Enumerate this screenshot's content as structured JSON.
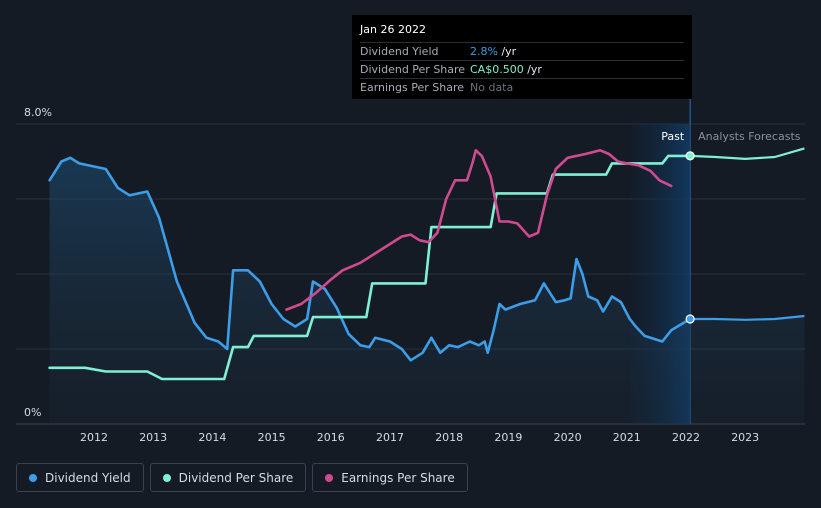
{
  "chart_data": {
    "type": "line",
    "x_axis": {
      "ticks": [
        "2012",
        "2013",
        "2014",
        "2015",
        "2016",
        "2017",
        "2018",
        "2019",
        "2020",
        "2021",
        "2022",
        "2023"
      ]
    },
    "y_axis": {
      "top_label": "8.0%",
      "bottom_label": "0%",
      "ylim": [
        0,
        8.0
      ]
    },
    "sections": {
      "past_label": "Past",
      "forecast_label": "Analysts Forecasts"
    },
    "series": [
      {
        "name": "Dividend Yield",
        "color": "#3c9de8",
        "points": [
          [
            2011.25,
            6.5
          ],
          [
            2011.45,
            7.0
          ],
          [
            2011.6,
            7.1
          ],
          [
            2011.75,
            6.95
          ],
          [
            2012.2,
            6.8
          ],
          [
            2012.4,
            6.3
          ],
          [
            2012.6,
            6.1
          ],
          [
            2012.9,
            6.2
          ],
          [
            2013.1,
            5.5
          ],
          [
            2013.4,
            3.8
          ],
          [
            2013.7,
            2.7
          ],
          [
            2013.9,
            2.3
          ],
          [
            2014.1,
            2.2
          ],
          [
            2014.25,
            2.0
          ],
          [
            2014.35,
            4.1
          ],
          [
            2014.6,
            4.1
          ],
          [
            2014.8,
            3.8
          ],
          [
            2015.0,
            3.2
          ],
          [
            2015.2,
            2.8
          ],
          [
            2015.4,
            2.6
          ],
          [
            2015.6,
            2.8
          ],
          [
            2015.7,
            3.8
          ],
          [
            2015.9,
            3.6
          ],
          [
            2016.1,
            3.1
          ],
          [
            2016.3,
            2.4
          ],
          [
            2016.5,
            2.1
          ],
          [
            2016.65,
            2.05
          ],
          [
            2016.75,
            2.3
          ],
          [
            2017.0,
            2.2
          ],
          [
            2017.2,
            2.0
          ],
          [
            2017.35,
            1.7
          ],
          [
            2017.55,
            1.9
          ],
          [
            2017.7,
            2.3
          ],
          [
            2017.85,
            1.9
          ],
          [
            2018.0,
            2.1
          ],
          [
            2018.15,
            2.05
          ],
          [
            2018.35,
            2.2
          ],
          [
            2018.5,
            2.1
          ],
          [
            2018.6,
            2.2
          ],
          [
            2018.65,
            1.9
          ],
          [
            2018.75,
            2.5
          ],
          [
            2018.85,
            3.2
          ],
          [
            2018.95,
            3.05
          ],
          [
            2019.2,
            3.2
          ],
          [
            2019.45,
            3.3
          ],
          [
            2019.6,
            3.75
          ],
          [
            2019.8,
            3.25
          ],
          [
            2019.95,
            3.3
          ],
          [
            2020.05,
            3.35
          ],
          [
            2020.15,
            4.4
          ],
          [
            2020.25,
            4.0
          ],
          [
            2020.35,
            3.4
          ],
          [
            2020.5,
            3.3
          ],
          [
            2020.6,
            3.0
          ],
          [
            2020.75,
            3.4
          ],
          [
            2020.9,
            3.25
          ],
          [
            2021.05,
            2.8
          ],
          [
            2021.15,
            2.6
          ],
          [
            2021.3,
            2.35
          ],
          [
            2021.5,
            2.25
          ],
          [
            2021.6,
            2.2
          ],
          [
            2021.75,
            2.5
          ],
          [
            2022.07,
            2.8
          ]
        ]
      },
      {
        "name": "Dividend Per Share",
        "color": "#7ff0d2",
        "points": [
          [
            2011.25,
            1.5
          ],
          [
            2011.85,
            1.5
          ],
          [
            2012.2,
            1.4
          ],
          [
            2012.9,
            1.4
          ],
          [
            2013.15,
            1.2
          ],
          [
            2014.2,
            1.2
          ],
          [
            2014.35,
            2.05
          ],
          [
            2014.6,
            2.05
          ],
          [
            2014.7,
            2.35
          ],
          [
            2015.6,
            2.35
          ],
          [
            2015.7,
            2.85
          ],
          [
            2016.6,
            2.85
          ],
          [
            2016.7,
            3.75
          ],
          [
            2017.6,
            3.75
          ],
          [
            2017.7,
            5.25
          ],
          [
            2018.7,
            5.25
          ],
          [
            2018.8,
            6.15
          ],
          [
            2019.65,
            6.15
          ],
          [
            2019.75,
            6.65
          ],
          [
            2020.65,
            6.65
          ],
          [
            2020.75,
            6.95
          ],
          [
            2021.6,
            6.95
          ],
          [
            2021.7,
            7.15
          ],
          [
            2022.07,
            7.15
          ]
        ]
      },
      {
        "name": "Earnings Per Share",
        "color": "#d04a92",
        "points": [
          [
            2015.25,
            3.05
          ],
          [
            2015.5,
            3.2
          ],
          [
            2015.75,
            3.5
          ],
          [
            2016.0,
            3.85
          ],
          [
            2016.2,
            4.1
          ],
          [
            2016.5,
            4.3
          ],
          [
            2016.75,
            4.55
          ],
          [
            2017.0,
            4.8
          ],
          [
            2017.2,
            5.0
          ],
          [
            2017.35,
            5.05
          ],
          [
            2017.5,
            4.9
          ],
          [
            2017.65,
            4.85
          ],
          [
            2017.8,
            5.1
          ],
          [
            2017.95,
            6.0
          ],
          [
            2018.1,
            6.5
          ],
          [
            2018.3,
            6.5
          ],
          [
            2018.4,
            7.0
          ],
          [
            2018.45,
            7.3
          ],
          [
            2018.55,
            7.15
          ],
          [
            2018.7,
            6.6
          ],
          [
            2018.85,
            5.4
          ],
          [
            2019.0,
            5.4
          ],
          [
            2019.15,
            5.35
          ],
          [
            2019.35,
            5.0
          ],
          [
            2019.5,
            5.1
          ],
          [
            2019.65,
            6.1
          ],
          [
            2019.8,
            6.8
          ],
          [
            2020.0,
            7.1
          ],
          [
            2020.3,
            7.2
          ],
          [
            2020.55,
            7.3
          ],
          [
            2020.7,
            7.2
          ],
          [
            2020.85,
            7.0
          ],
          [
            2021.0,
            6.95
          ],
          [
            2021.2,
            6.9
          ],
          [
            2021.4,
            6.75
          ],
          [
            2021.55,
            6.5
          ],
          [
            2021.75,
            6.35
          ]
        ]
      }
    ],
    "forecast": [
      {
        "name": "Dividend Yield",
        "color": "#3c9de8",
        "points": [
          [
            2022.07,
            2.8
          ],
          [
            2022.5,
            2.8
          ],
          [
            2023.0,
            2.78
          ],
          [
            2023.5,
            2.8
          ],
          [
            2024.0,
            2.88
          ]
        ]
      },
      {
        "name": "Dividend Per Share",
        "color": "#7ff0d2",
        "points": [
          [
            2022.07,
            7.15
          ],
          [
            2022.5,
            7.12
          ],
          [
            2023.0,
            7.07
          ],
          [
            2023.5,
            7.12
          ],
          [
            2024.0,
            7.35
          ]
        ]
      }
    ],
    "legend": [
      "Dividend Yield",
      "Dividend Per Share",
      "Earnings Per Share"
    ]
  },
  "tooltip": {
    "date": "Jan 26 2022",
    "rows": [
      {
        "label": "Dividend Yield",
        "value": "2.8%",
        "suffix": " /yr"
      },
      {
        "label": "Dividend Per Share",
        "value": "CA$0.500",
        "suffix": " /yr"
      },
      {
        "label": "Earnings Per Share",
        "value": "No data",
        "suffix": ""
      }
    ]
  },
  "legend_items": [
    {
      "label": "Dividend Yield",
      "color": "#3c9de8"
    },
    {
      "label": "Dividend Per Share",
      "color": "#7ff0d2"
    },
    {
      "label": "Earnings Per Share",
      "color": "#d04a92"
    }
  ]
}
